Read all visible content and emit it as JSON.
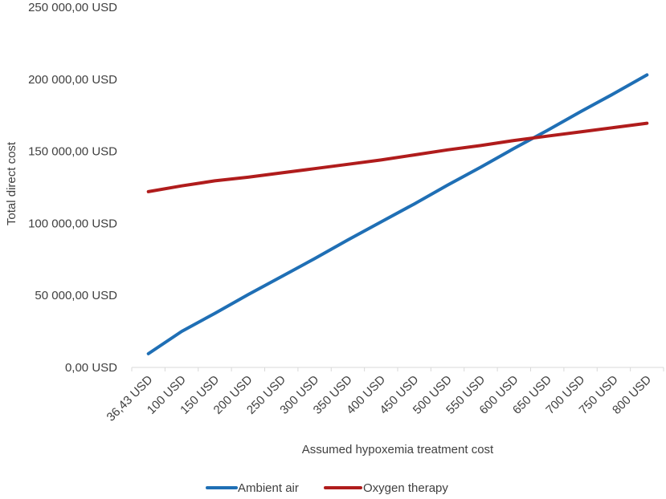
{
  "chart_data": {
    "type": "line",
    "title": "",
    "xlabel": "Assumed hypoxemia treatment cost",
    "ylabel": "Total direct cost",
    "categories": [
      "36,43 USD",
      "100 USD",
      "150 USD",
      "200 USD",
      "250 USD",
      "300 USD",
      "350 USD",
      "400 USD",
      "450 USD",
      "500 USD",
      "550 USD",
      "600 USD",
      "650 USD",
      "700 USD",
      "750 USD",
      "800 USD"
    ],
    "y_ticks": [
      0,
      50000,
      100000,
      150000,
      200000,
      250000
    ],
    "y_tick_labels": [
      "0,00 USD",
      "50 000,00 USD",
      "100 000,00 USD",
      "150 000,00 USD",
      "200 000,00 USD",
      "250 000,00 USD"
    ],
    "ylim": [
      0,
      250000
    ],
    "grid": false,
    "legend_position": "bottom",
    "series": [
      {
        "name": "Ambient air",
        "color": "#1f6fb5",
        "values": [
          9500,
          25000,
          37500,
          50500,
          63000,
          75500,
          88500,
          101000,
          113500,
          126500,
          139000,
          152000,
          164500,
          177500,
          190000,
          203000
        ]
      },
      {
        "name": "Oxygen therapy",
        "color": "#b01c1c",
        "values": [
          122000,
          126000,
          129500,
          132000,
          135000,
          138000,
          141000,
          144000,
          147500,
          151000,
          154000,
          157500,
          160500,
          163500,
          166500,
          169500
        ]
      }
    ]
  }
}
